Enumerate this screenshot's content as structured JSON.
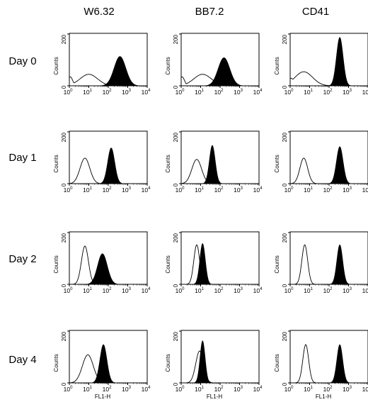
{
  "figure": {
    "columns": [
      "W6.32",
      "BB7.2",
      "CD41"
    ],
    "rows": [
      "Day 0",
      "Day 1",
      "Day 2",
      "Day 4"
    ]
  },
  "chart_data": {
    "type": "area",
    "panel_type": "flow cytometry histogram overlay",
    "ylabel": "Counts",
    "xlabel_bottom_row": "FL1-H",
    "x_scale": "log",
    "xlim": [
      1,
      10000
    ],
    "ylim": [
      0,
      200
    ],
    "x_ticks": [
      {
        "base": "10",
        "exp": "0"
      },
      {
        "base": "10",
        "exp": "1"
      },
      {
        "base": "10",
        "exp": "2"
      },
      {
        "base": "10",
        "exp": "3"
      },
      {
        "base": "10",
        "exp": "4"
      }
    ],
    "y_ticks": [
      "0",
      "200"
    ],
    "series_style": {
      "open": "outline only (control)",
      "filled": "solid black fill (antibody)"
    },
    "panels": [
      {
        "row": "Day 0",
        "column": "W6.32",
        "open": {
          "peak_log10": 1.0,
          "height": 45,
          "width": 0.45,
          "baseline": 35
        },
        "filled": {
          "peak_log10": 2.6,
          "height": 115,
          "width": 0.3
        }
      },
      {
        "row": "Day 0",
        "column": "BB7.2",
        "open": {
          "peak_log10": 1.1,
          "height": 45,
          "width": 0.45,
          "baseline": 35
        },
        "filled": {
          "peak_log10": 2.2,
          "height": 110,
          "width": 0.3
        }
      },
      {
        "row": "Day 0",
        "column": "CD41",
        "open": {
          "peak_log10": 0.7,
          "height": 55,
          "width": 0.45,
          "baseline": 30
        },
        "filled": {
          "peak_log10": 2.55,
          "height": 190,
          "width": 0.17
        }
      },
      {
        "row": "Day 1",
        "column": "W6.32",
        "open": {
          "peak_log10": 0.8,
          "height": 100,
          "width": 0.25
        },
        "filled": {
          "peak_log10": 2.15,
          "height": 140,
          "width": 0.18
        }
      },
      {
        "row": "Day 1",
        "column": "BB7.2",
        "open": {
          "peak_log10": 0.8,
          "height": 95,
          "width": 0.25
        },
        "filled": {
          "peak_log10": 1.6,
          "height": 150,
          "width": 0.15
        }
      },
      {
        "row": "Day 1",
        "column": "CD41",
        "open": {
          "peak_log10": 0.7,
          "height": 100,
          "width": 0.2
        },
        "filled": {
          "peak_log10": 2.55,
          "height": 145,
          "width": 0.17
        }
      },
      {
        "row": "Day 2",
        "column": "W6.32",
        "open": {
          "peak_log10": 0.8,
          "height": 150,
          "width": 0.18
        },
        "filled": {
          "peak_log10": 1.7,
          "height": 120,
          "width": 0.25
        }
      },
      {
        "row": "Day 2",
        "column": "BB7.2",
        "open": {
          "peak_log10": 0.8,
          "height": 155,
          "width": 0.15
        },
        "filled": {
          "peak_log10": 1.1,
          "height": 160,
          "width": 0.14
        }
      },
      {
        "row": "Day 2",
        "column": "CD41",
        "open": {
          "peak_log10": 0.75,
          "height": 155,
          "width": 0.15
        },
        "filled": {
          "peak_log10": 2.55,
          "height": 155,
          "width": 0.15
        }
      },
      {
        "row": "Day 4",
        "column": "W6.32",
        "open": {
          "peak_log10": 0.95,
          "height": 110,
          "width": 0.28
        },
        "filled": {
          "peak_log10": 1.75,
          "height": 150,
          "width": 0.18
        }
      },
      {
        "row": "Day 4",
        "column": "BB7.2",
        "open": {
          "peak_log10": 0.95,
          "height": 125,
          "width": 0.2
        },
        "filled": {
          "peak_log10": 1.1,
          "height": 165,
          "width": 0.13
        }
      },
      {
        "row": "Day 4",
        "column": "CD41",
        "open": {
          "peak_log10": 0.8,
          "height": 150,
          "width": 0.15
        },
        "filled": {
          "peak_log10": 2.55,
          "height": 150,
          "width": 0.15
        }
      }
    ]
  }
}
